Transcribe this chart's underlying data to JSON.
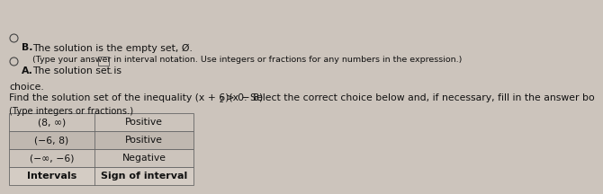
{
  "bg_color": "#ccc4bc",
  "table_headers": [
    "Intervals",
    "Sign of interval"
  ],
  "table_rows": [
    [
      "(−∞, −6)",
      "Negative"
    ],
    [
      "(−6, 8)",
      "Positive"
    ],
    [
      "(8, ∞)",
      "Positive"
    ]
  ],
  "caption": "(Type integers or fractions.)",
  "main_prefix": "Find the solution set of the inequality (x + 6)(x − 8)",
  "main_sup": "2",
  "main_suffix": " > 0. Select the correct choice below and, if necessary, fill in the answer bo",
  "main_line2": "choice.",
  "opt_a_text": "The solution set is",
  "opt_a_subtext": "(Type your answer in interval notation. Use integers or fractions for any numbers in the expression.)",
  "opt_b_text": "The solution is the empty set, Ø.",
  "text_color": "#111111",
  "table_line_color": "#666666",
  "header_bg": "#d4ccc4",
  "row_bg_alt": "#c0b8b0",
  "row_bg_norm": "#ccc4bc",
  "fs_header": 8.0,
  "fs_body": 7.8,
  "fs_small": 6.8,
  "fs_caption": 7.2
}
